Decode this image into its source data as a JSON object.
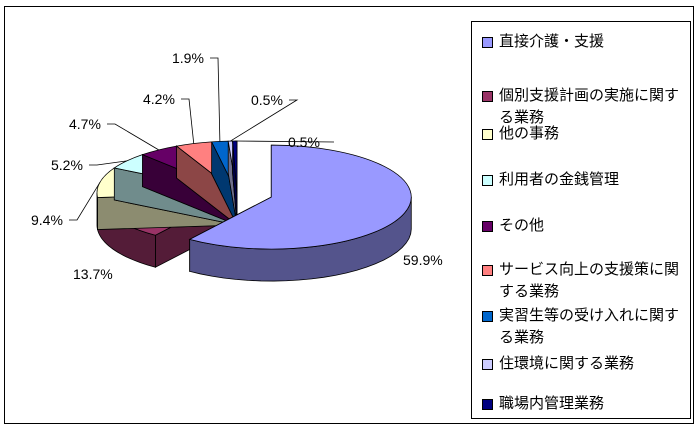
{
  "chart_data": {
    "type": "pie",
    "title": "",
    "categories": [
      "直接介護・支援",
      "個別支援計画の実施に関する業務",
      "他の事務",
      "利用者の金銭管理",
      "その他",
      "サービス向上の支援策に関する業務",
      "実習生等の受け入れに関する業務",
      "住環境に関する業務",
      "職場内管理業務"
    ],
    "values": [
      59.9,
      13.7,
      9.4,
      5.2,
      4.7,
      4.2,
      1.9,
      0.5,
      0.5
    ],
    "labels": [
      "59.9%",
      "13.7%",
      "9.4%",
      "5.2%",
      "4.7%",
      "4.2%",
      "1.9%",
      "0.5%",
      "0.5%"
    ],
    "colors": [
      "#9999FF",
      "#993366",
      "#FFFFCC",
      "#CCFFFF",
      "#660066",
      "#FF8080",
      "#0066CC",
      "#CCCCFF",
      "#000080"
    ],
    "legend": "right",
    "style": "3d-exploded"
  }
}
